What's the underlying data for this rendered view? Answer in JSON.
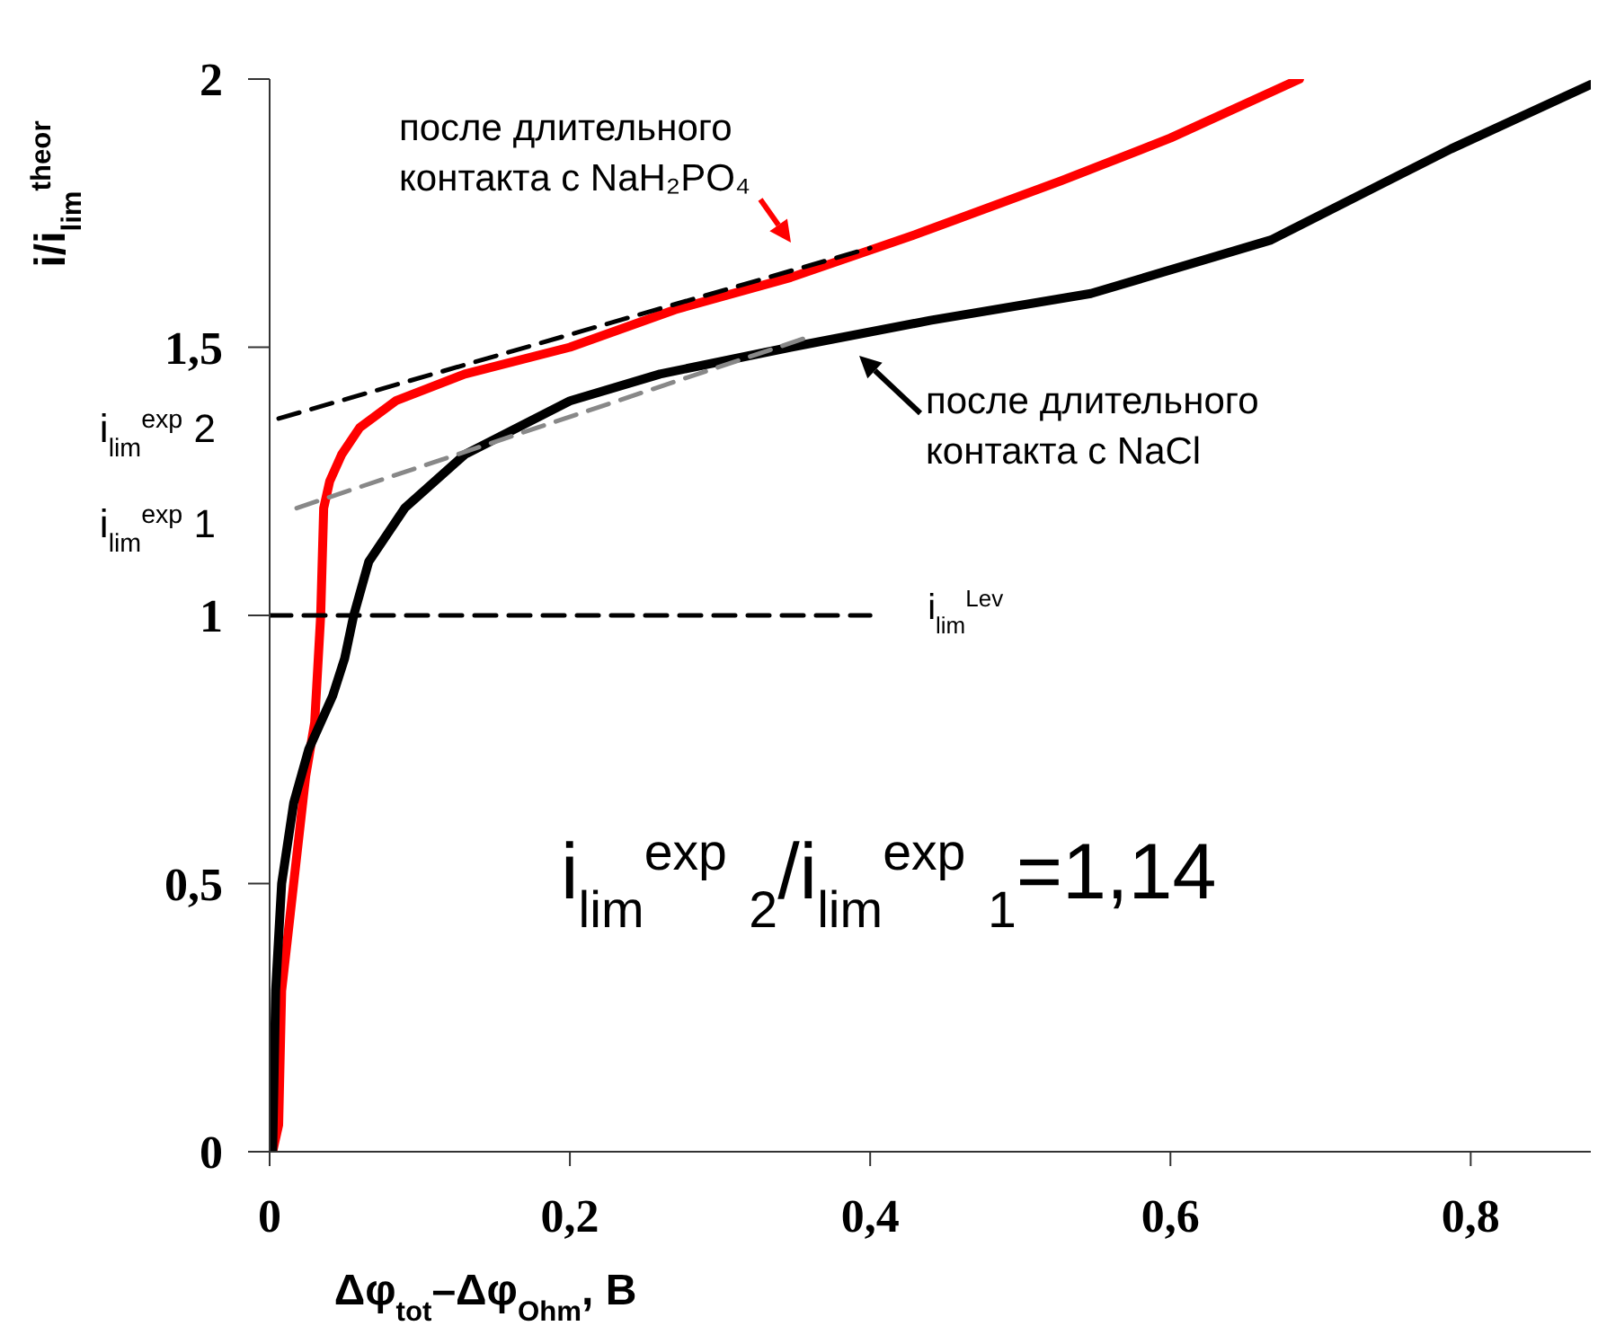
{
  "chart_data": {
    "type": "line",
    "xlabel": "Δφ$_{tot}$–Δφ$_{Ohm}$, B",
    "ylabel": "i/i$_{lim}$$^{theor}$",
    "xlim": [
      0,
      0.88
    ],
    "ylim": [
      0,
      2
    ],
    "xticks": [
      {
        "value": 0,
        "label": "0"
      },
      {
        "value": 0.2,
        "label": "0,2"
      },
      {
        "value": 0.4,
        "label": "0,4"
      },
      {
        "value": 0.6,
        "label": "0,6"
      },
      {
        "value": 0.8,
        "label": "0,8"
      }
    ],
    "yticks": [
      {
        "value": 0,
        "label": "0"
      },
      {
        "value": 0.5,
        "label": "0,5"
      },
      {
        "value": 1,
        "label": "1"
      },
      {
        "value": 1.5,
        "label": "1,5"
      },
      {
        "value": 2,
        "label": "2"
      }
    ],
    "marker": "none",
    "series": [
      {
        "color": "#ff0000",
        "line_style": "solid",
        "x": [
          0.002,
          0.006,
          0.008,
          0.016,
          0.024,
          0.03,
          0.032,
          0.034,
          0.035,
          0.036,
          0.04,
          0.048,
          0.06,
          0.084,
          0.13,
          0.2,
          0.27,
          0.347,
          0.43,
          0.527,
          0.6,
          0.686
        ],
        "values": [
          0,
          0.05,
          0.3,
          0.5,
          0.7,
          0.8,
          0.9,
          1.0,
          1.1,
          1.2,
          1.25,
          1.3,
          1.35,
          1.4,
          1.45,
          1.5,
          1.57,
          1.63,
          1.71,
          1.81,
          1.89,
          2.0
        ]
      },
      {
        "color": "#000000",
        "line_style": "solid",
        "x": [
          0.002,
          0.004,
          0.008,
          0.016,
          0.026,
          0.042,
          0.05,
          0.056,
          0.066,
          0.09,
          0.13,
          0.2,
          0.26,
          0.347,
          0.44,
          0.547,
          0.667,
          0.787,
          0.88
        ],
        "values": [
          0,
          0.3,
          0.5,
          0.65,
          0.75,
          0.85,
          0.92,
          1.0,
          1.1,
          1.2,
          1.3,
          1.4,
          1.45,
          1.5,
          1.55,
          1.6,
          1.7,
          1.87,
          1.99
        ]
      },
      {
        "color": "#000000",
        "line_style": "dashed",
        "x": [
          0.006,
          0.4
        ],
        "values": [
          1.367,
          1.685
        ]
      },
      {
        "color": "#888888",
        "line_style": "dashed",
        "x": [
          0.018,
          0.36
        ],
        "values": [
          1.2,
          1.52
        ]
      },
      {
        "color": "#000000",
        "line_style": "dashed",
        "x": [
          0,
          0.4
        ],
        "values": [
          1,
          1
        ]
      }
    ],
    "annotations": [
      "после длительного контакта с NaH₂PO₄",
      "после длительного контакта с NaCl",
      "i$_{lim}$$^{exp}$ 2",
      "i$_{lim}$$^{exp}$ 1",
      {
        "text": "i$_{lim}$$^{Lev}$",
        "x": 0.4,
        "y": 1
      },
      "i$_{lim}$$^{exp}$ $_{2}$/i$_{lim}$$^{exp}$ $_{1}$=1,14"
    ]
  }
}
